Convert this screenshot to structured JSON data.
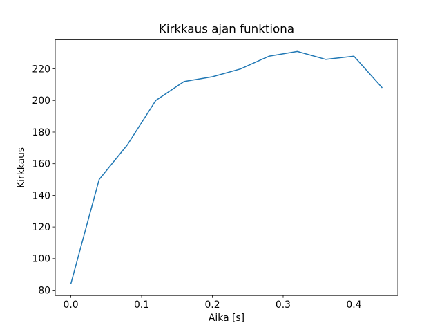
{
  "figure": {
    "background": "#ffffff"
  },
  "chart_data": {
    "type": "line",
    "title": "Kirkkaus ajan funktiona",
    "xlabel": "Aika [s]",
    "ylabel": "Kirkkaus",
    "x": [
      0.0,
      0.04,
      0.08,
      0.12,
      0.16,
      0.2,
      0.24,
      0.28,
      0.32,
      0.36,
      0.4,
      0.44
    ],
    "y": [
      84,
      150,
      172,
      200,
      212,
      215,
      220,
      228,
      231,
      226,
      228,
      208
    ],
    "line_color": "#1f77b4",
    "line_width": 1.5,
    "xlim": [
      -0.022,
      0.462
    ],
    "ylim": [
      76.65,
      238.35
    ],
    "xticks": {
      "values": [
        0.0,
        0.1,
        0.2,
        0.3,
        0.4
      ],
      "labels": [
        "0.0",
        "0.1",
        "0.2",
        "0.3",
        "0.4"
      ]
    },
    "yticks": {
      "values": [
        80,
        100,
        120,
        140,
        160,
        180,
        200,
        220
      ],
      "labels": [
        "80",
        "100",
        "120",
        "140",
        "160",
        "180",
        "200",
        "220"
      ]
    },
    "grid": false,
    "legend": null
  }
}
